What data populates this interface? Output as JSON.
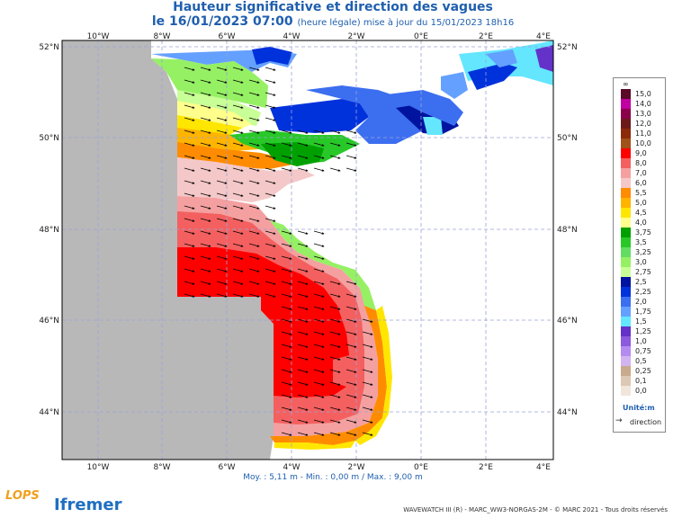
{
  "header": {
    "title": "Hauteur significative et direction des vagues",
    "date_line": "le 16/01/2023 07:00",
    "update_note": "(heure légale) mise à jour du 15/01/2023 18h16"
  },
  "map": {
    "lon_labels_top": [
      "10°W",
      "8°W",
      "6°W",
      "4°W",
      "2°W",
      "0°E",
      "2°E",
      "4°E"
    ],
    "lon_labels_bottom": [
      "10°W",
      "8°W",
      "6°W",
      "4°W",
      "2°W",
      "0°E",
      "2°E",
      "4°E"
    ],
    "lat_labels_left": [
      "52°N",
      "50°N",
      "48°N",
      "46°N",
      "44°N"
    ],
    "lat_labels_right": [
      "52°N",
      "50°N",
      "48°N",
      "46°N",
      "44°N"
    ],
    "land_color": "#ffffff",
    "nodata_color": "#b8b8b8",
    "grid_color": "#9aa3d6"
  },
  "legend": {
    "top_symbol": "∞",
    "entries": [
      {
        "label": "15,0",
        "color": "#5b0a2a"
      },
      {
        "label": "14,0",
        "color": "#c000a0"
      },
      {
        "label": "13,0",
        "color": "#8b004b"
      },
      {
        "label": "12,0",
        "color": "#6b1a1a"
      },
      {
        "label": "11,0",
        "color": "#8b2a0a"
      },
      {
        "label": "10,0",
        "color": "#a0521a"
      },
      {
        "label": "9,0",
        "color": "#ff0000"
      },
      {
        "label": "8,0",
        "color": "#f46060"
      },
      {
        "label": "7,0",
        "color": "#f4a0a0"
      },
      {
        "label": "6,0",
        "color": "#f4c8c8"
      },
      {
        "label": "5,5",
        "color": "#ff8c00"
      },
      {
        "label": "5,0",
        "color": "#ffb400"
      },
      {
        "label": "4,5",
        "color": "#ffe600"
      },
      {
        "label": "4,0",
        "color": "#ffff8c"
      },
      {
        "label": "3,75",
        "color": "#00a000"
      },
      {
        "label": "3,5",
        "color": "#28c828"
      },
      {
        "label": "3,25",
        "color": "#64dc64"
      },
      {
        "label": "3,0",
        "color": "#96f064"
      },
      {
        "label": "2,75",
        "color": "#c8ff96"
      },
      {
        "label": "2,5",
        "color": "#0014a0"
      },
      {
        "label": "2,25",
        "color": "#0032dc"
      },
      {
        "label": "2,0",
        "color": "#3c6ef0"
      },
      {
        "label": "1,75",
        "color": "#64a0ff"
      },
      {
        "label": "1,5",
        "color": "#64e6ff"
      },
      {
        "label": "1,25",
        "color": "#6432c8"
      },
      {
        "label": "1,0",
        "color": "#8c5adc"
      },
      {
        "label": "0,75",
        "color": "#b48cf0"
      },
      {
        "label": "0,5",
        "color": "#d2b4f0"
      },
      {
        "label": "0,25",
        "color": "#c8aa8c"
      },
      {
        "label": "0,1",
        "color": "#dcc8b4"
      },
      {
        "label": "0,0",
        "color": "#f0e6dc"
      }
    ],
    "unit": "Unité:m",
    "direction_label": "direction",
    "direction_arrow": "→"
  },
  "stats": "Moy. : 5,11 m   -   Min. : 0,00 m / Max. : 9,00 m",
  "footer": "WAVEWATCH III (R) - MARC_WW3-NORGAS-2M - © MARC 2021 - Tous droits réservés",
  "logos": {
    "left": "LOPS",
    "right": "Ifremer"
  }
}
